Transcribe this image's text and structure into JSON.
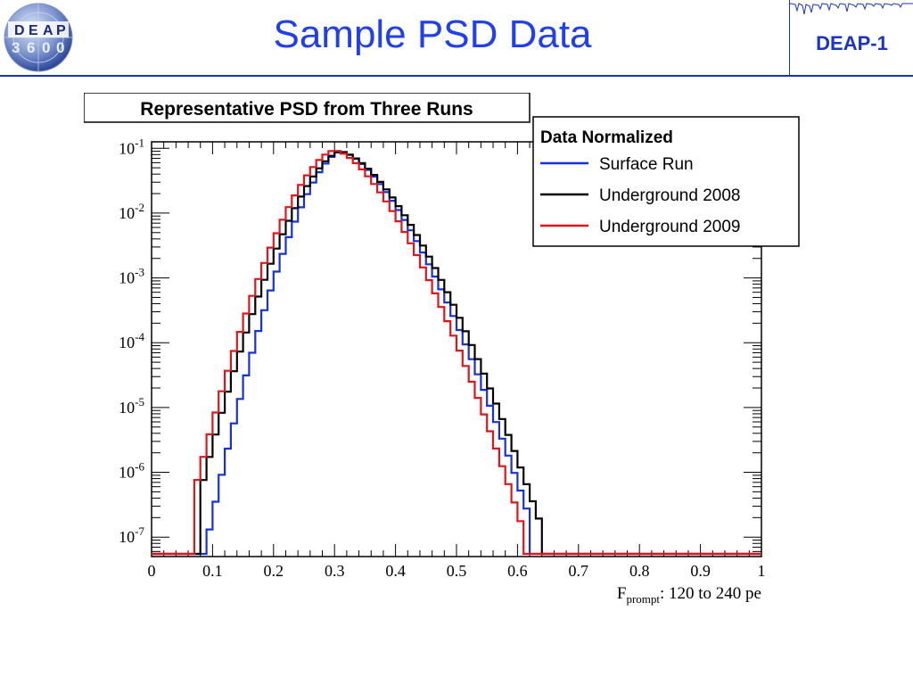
{
  "slide": {
    "title": "Sample PSD Data",
    "badge": "DEAP-1",
    "logo_text": [
      "D",
      "E",
      "A",
      "P",
      "3",
      "6",
      "0",
      "0"
    ],
    "accent_color": "#1f3ff0"
  },
  "chart_data": {
    "type": "line",
    "title": "Representative PSD from Three Runs",
    "xlabel_main": "F",
    "xlabel_sub": "prompt",
    "xlabel_rest": ": 120 to 240 pe",
    "ylabel": "",
    "xlim": [
      0,
      1
    ],
    "ylim_log10": [
      -7.3,
      -0.9
    ],
    "yscale": "log",
    "grid": false,
    "legend_title": "Data Normalized",
    "legend_position": "top-right",
    "x_ticks": [
      "0",
      "0.1",
      "0.2",
      "0.3",
      "0.4",
      "0.5",
      "0.6",
      "0.7",
      "0.8",
      "0.9",
      "1"
    ],
    "y_ticks": [
      {
        "base": "10",
        "exp": "-1"
      },
      {
        "base": "10",
        "exp": "-2"
      },
      {
        "base": "10",
        "exp": "-3"
      },
      {
        "base": "10",
        "exp": "-4"
      },
      {
        "base": "10",
        "exp": "-5"
      },
      {
        "base": "10",
        "exp": "-6"
      },
      {
        "base": "10",
        "exp": "-7"
      }
    ],
    "series": [
      {
        "name": "Surface Run",
        "color": "#1530e0",
        "x_start": 0.09,
        "y_start_log10": -7.1,
        "x_peak": 0.31,
        "y_peak_log10": -1.05,
        "x_end": 0.62,
        "y_end_log10": -6.7
      },
      {
        "name": "Underground 2008",
        "color": "#000000",
        "x_start": 0.08,
        "y_start_log10": -6.3,
        "x_peak": 0.31,
        "y_peak_log10": -1.05,
        "x_end": 0.64,
        "y_end_log10": -6.85
      },
      {
        "name": "Underground 2009",
        "color": "#e0141b",
        "x_start": 0.07,
        "y_start_log10": -6.3,
        "x_peak": 0.3,
        "y_peak_log10": -1.03,
        "x_end": 0.61,
        "y_end_log10": -6.9
      }
    ]
  }
}
